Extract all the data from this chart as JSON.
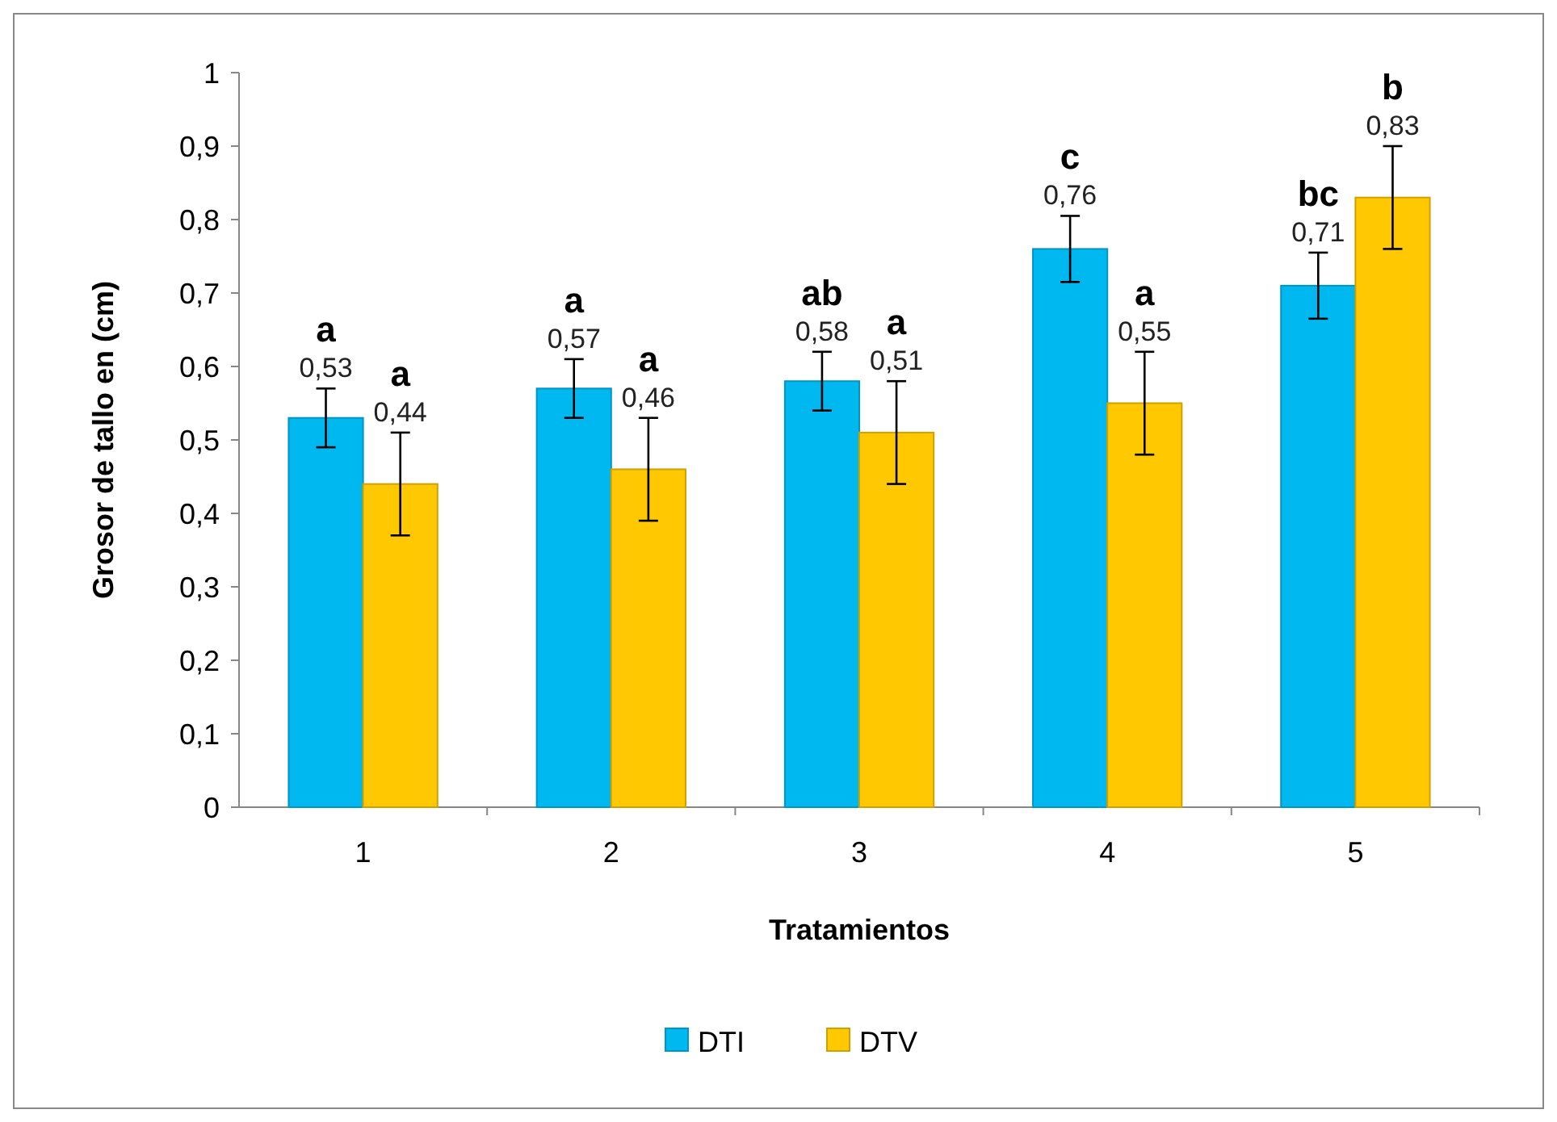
{
  "chart_data": {
    "type": "bar",
    "xlabel": "Tratamientos",
    "ylabel": "Grosor de tallo en (cm)",
    "categories": [
      "1",
      "2",
      "3",
      "4",
      "5"
    ],
    "series": [
      {
        "name": "DTI",
        "color": "#00b8f0",
        "values": [
          0.53,
          0.57,
          0.58,
          0.76,
          0.71
        ],
        "errors": [
          0.04,
          0.04,
          0.04,
          0.045,
          0.045
        ],
        "value_labels": [
          "0,53",
          "0,57",
          "0,58",
          "0,76",
          "0,71"
        ]
      },
      {
        "name": "DTV",
        "color": "#ffc800",
        "values": [
          0.44,
          0.46,
          0.51,
          0.55,
          0.83
        ],
        "errors": [
          0.07,
          0.07,
          0.07,
          0.07,
          0.07
        ],
        "value_labels": [
          "0,44",
          "0,46",
          "0,51",
          "0,55",
          "0,83"
        ]
      }
    ],
    "ylim": [
      0,
      1
    ],
    "yticks": [
      0,
      {
        "value": 0.1,
        "label": "0,1"
      },
      {
        "value": 0.2,
        "label": "0,2"
      },
      {
        "value": 0.3,
        "label": "0,3"
      },
      {
        "value": 0.4,
        "label": "0,4"
      },
      {
        "value": 0.5,
        "label": "0,5"
      },
      {
        "value": 0.6,
        "label": "0,6"
      },
      {
        "value": 0.7,
        "label": "0,7"
      },
      {
        "value": 0.8,
        "label": "0,8"
      },
      {
        "value": 0.9,
        "label": "0,9"
      },
      1
    ],
    "annotations": [
      {
        "text": "a",
        "x": "1",
        "y": 0.53
      },
      {
        "text": "a",
        "x": "1",
        "y": 0.44
      },
      {
        "text": "a",
        "x": "2",
        "y": 0.57
      },
      {
        "text": "a",
        "x": "2",
        "y": 0.46
      },
      {
        "text": "ab",
        "x": "3",
        "y": 0.58
      },
      {
        "text": "a",
        "x": "3",
        "y": 0.51
      },
      {
        "text": "c",
        "x": "4",
        "y": 0.76
      },
      {
        "text": "a",
        "x": "4",
        "y": 0.55
      },
      {
        "text": "bc",
        "x": "5",
        "y": 0.71
      },
      {
        "text": "b",
        "x": "5",
        "y": 0.83
      }
    ],
    "grid": false,
    "legend": "bottom"
  }
}
